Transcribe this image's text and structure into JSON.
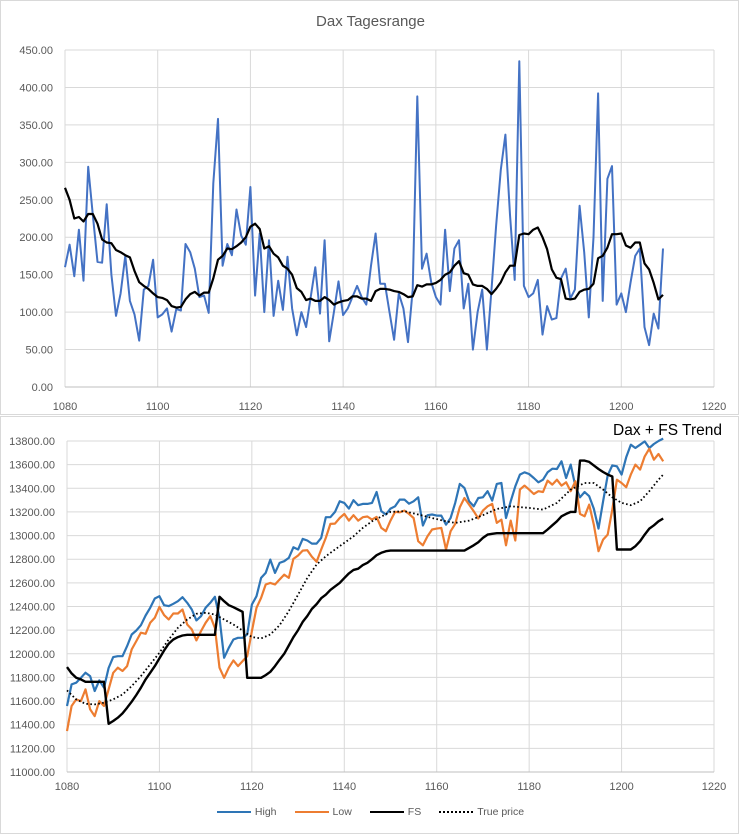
{
  "chart_data": [
    {
      "type": "line",
      "title": "Dax Tagesrange",
      "xlim": [
        1080,
        1220
      ],
      "ylim": [
        0,
        450
      ],
      "grid": true,
      "xticks": [
        "1080",
        "1100",
        "1120",
        "1140",
        "1160",
        "1180",
        "1200",
        "1220"
      ],
      "yticks": [
        "0.00",
        "50.00",
        "100.00",
        "150.00",
        "200.00",
        "250.00",
        "300.00",
        "350.00",
        "400.00",
        "450.00"
      ],
      "x": [
        1080,
        1081,
        1082,
        1083,
        1084,
        1085,
        1086,
        1087,
        1088,
        1089,
        1090,
        1091,
        1092,
        1093,
        1094,
        1095,
        1096,
        1097,
        1098,
        1099,
        1100,
        1101,
        1102,
        1103,
        1104,
        1105,
        1106,
        1107,
        1108,
        1109,
        1110,
        1111,
        1112,
        1113,
        1114,
        1115,
        1116,
        1117,
        1118,
        1119,
        1120,
        1121,
        1122,
        1123,
        1124,
        1125,
        1126,
        1127,
        1128,
        1129,
        1130,
        1131,
        1132,
        1133,
        1134,
        1135,
        1136,
        1137,
        1138,
        1139,
        1140,
        1141,
        1142,
        1143,
        1144,
        1145,
        1146,
        1147,
        1148,
        1149,
        1150,
        1151,
        1152,
        1153,
        1154,
        1155,
        1156,
        1157,
        1158,
        1159,
        1160,
        1161,
        1162,
        1163,
        1164,
        1165,
        1166,
        1167,
        1168,
        1169,
        1170,
        1171,
        1172,
        1173,
        1174,
        1175,
        1176,
        1177,
        1178,
        1179,
        1180,
        1181,
        1182,
        1183,
        1184,
        1185,
        1186,
        1187,
        1188,
        1189,
        1190,
        1191,
        1192,
        1193,
        1194,
        1195,
        1196,
        1197,
        1198,
        1199,
        1200,
        1201,
        1202,
        1203,
        1204,
        1205,
        1206,
        1207,
        1208,
        1209
      ],
      "series": [
        {
          "color": "#4472C4",
          "style": "solid",
          "width": 2,
          "values": [
            160,
            190,
            148,
            210,
            142,
            294,
            230,
            167,
            166,
            244,
            150,
            95,
            125,
            175,
            115,
            97,
            62,
            130,
            135,
            170,
            93,
            97,
            105,
            74,
            104,
            102,
            191,
            180,
            158,
            120,
            122,
            99,
            272,
            358,
            162,
            191,
            176,
            237,
            202,
            190,
            267,
            122,
            205,
            100,
            196,
            95,
            142,
            103,
            174,
            105,
            69,
            100,
            80,
            120,
            160,
            98,
            196,
            61,
            100,
            141,
            96,
            105,
            120,
            135,
            120,
            110,
            162,
            205,
            138,
            138,
            100,
            63,
            125,
            105,
            60,
            130,
            388,
            158,
            178,
            140,
            120,
            110,
            210,
            128,
            185,
            196,
            105,
            138,
            50,
            100,
            130,
            50,
            130,
            215,
            290,
            337,
            230,
            143,
            435,
            135,
            120,
            125,
            143,
            70,
            108,
            90,
            92,
            145,
            158,
            118,
            130,
            242,
            180,
            93,
            200,
            392,
            115,
            278,
            295,
            110,
            125,
            100,
            140,
            175,
            185,
            80,
            56,
            98,
            78,
            185
          ]
        },
        {
          "color": "#000000",
          "style": "solid",
          "width": 2.2,
          "values": [
            266,
            250,
            225,
            227,
            221,
            231,
            231,
            218,
            197,
            193,
            192,
            183,
            180,
            176,
            173,
            155,
            140,
            135,
            131,
            125,
            120,
            119,
            116,
            108,
            106,
            107,
            117,
            124,
            127,
            122,
            126,
            126,
            145,
            170,
            175,
            185,
            184,
            188,
            193,
            200,
            214,
            218,
            211,
            185,
            188,
            178,
            173,
            162,
            158,
            150,
            132,
            127,
            116,
            118,
            115,
            115,
            120,
            116,
            110,
            113,
            115,
            116,
            121,
            121,
            118,
            118,
            115,
            128,
            131,
            131,
            130,
            128,
            127,
            124,
            120,
            121,
            136,
            134,
            137,
            137,
            139,
            143,
            150,
            153,
            162,
            168,
            152,
            150,
            137,
            135,
            135,
            131,
            124,
            131,
            140,
            153,
            162,
            162,
            203,
            205,
            204,
            210,
            213,
            200,
            184,
            157,
            146,
            144,
            118,
            117,
            118,
            127,
            130,
            131,
            138,
            172,
            175,
            186,
            204,
            204,
            205,
            189,
            186,
            193,
            193,
            165,
            157,
            139,
            117,
            123
          ]
        }
      ]
    },
    {
      "type": "line",
      "title": "Dax + FS Trend",
      "xlim": [
        1080,
        1220
      ],
      "ylim": [
        11000,
        13800
      ],
      "grid": true,
      "legend": "bottom",
      "xticks": [
        "1080",
        "1100",
        "1120",
        "1140",
        "1160",
        "1180",
        "1200",
        "1220"
      ],
      "yticks": [
        "11000.00",
        "11200.00",
        "11400.00",
        "11600.00",
        "11800.00",
        "12000.00",
        "12200.00",
        "12400.00",
        "12600.00",
        "12800.00",
        "13000.00",
        "13200.00",
        "13400.00",
        "13600.00",
        "13800.00"
      ],
      "x": [
        1080,
        1081,
        1082,
        1083,
        1084,
        1085,
        1086,
        1087,
        1088,
        1089,
        1090,
        1091,
        1092,
        1093,
        1094,
        1095,
        1096,
        1097,
        1098,
        1099,
        1100,
        1101,
        1102,
        1103,
        1104,
        1105,
        1106,
        1107,
        1108,
        1109,
        1110,
        1111,
        1112,
        1113,
        1114,
        1115,
        1116,
        1117,
        1118,
        1119,
        1120,
        1121,
        1122,
        1123,
        1124,
        1125,
        1126,
        1127,
        1128,
        1129,
        1130,
        1131,
        1132,
        1133,
        1134,
        1135,
        1136,
        1137,
        1138,
        1139,
        1140,
        1141,
        1142,
        1143,
        1144,
        1145,
        1146,
        1147,
        1148,
        1149,
        1150,
        1151,
        1152,
        1153,
        1154,
        1155,
        1156,
        1157,
        1158,
        1159,
        1160,
        1161,
        1162,
        1163,
        1164,
        1165,
        1166,
        1167,
        1168,
        1169,
        1170,
        1171,
        1172,
        1173,
        1174,
        1175,
        1176,
        1177,
        1178,
        1179,
        1180,
        1181,
        1182,
        1183,
        1184,
        1185,
        1186,
        1187,
        1188,
        1189,
        1190,
        1191,
        1192,
        1193,
        1194,
        1195,
        1196,
        1197,
        1198,
        1199,
        1200,
        1201,
        1202,
        1203,
        1204,
        1205,
        1206,
        1207,
        1208,
        1209
      ],
      "series": [
        {
          "name": "High",
          "color": "#2E75B6",
          "style": "solid",
          "width": 2.2,
          "values": [
            11558,
            11741,
            11755,
            11797,
            11840,
            11811,
            11685,
            11775,
            11713,
            11880,
            11972,
            11980,
            11980,
            12065,
            12163,
            12197,
            12242,
            12324,
            12389,
            12468,
            12487,
            12411,
            12403,
            12423,
            12445,
            12479,
            12431,
            12375,
            12282,
            12318,
            12389,
            12431,
            12482,
            12304,
            11966,
            12051,
            12121,
            12135,
            12135,
            12163,
            12417,
            12487,
            12642,
            12684,
            12797,
            12684,
            12769,
            12783,
            12811,
            12901,
            12882,
            12972,
            12958,
            12932,
            12932,
            12980,
            13155,
            13155,
            13200,
            13290,
            13276,
            13228,
            13299,
            13257,
            13268,
            13268,
            13276,
            13369,
            13206,
            13178,
            13228,
            13248,
            13304,
            13304,
            13270,
            13290,
            13324,
            13085,
            13172,
            13178,
            13169,
            13169,
            13093,
            13149,
            13276,
            13437,
            13403,
            13290,
            13248,
            13318,
            13324,
            13375,
            13296,
            13437,
            13445,
            13149,
            13290,
            13417,
            13516,
            13535,
            13521,
            13487,
            13451,
            13473,
            13535,
            13566,
            13563,
            13628,
            13487,
            13600,
            13417,
            13324,
            13369,
            13333,
            13228,
            13059,
            13290,
            13510,
            13594,
            13586,
            13516,
            13662,
            13769,
            13741,
            13769,
            13797,
            13741,
            13775,
            13800,
            13820
          ]
        },
        {
          "name": "Low",
          "color": "#ED7D31",
          "style": "solid",
          "width": 2.2,
          "values": [
            11346,
            11558,
            11614,
            11600,
            11699,
            11530,
            11473,
            11600,
            11558,
            11699,
            11839,
            11882,
            11854,
            11896,
            12037,
            12107,
            12178,
            12169,
            12262,
            12304,
            12397,
            12327,
            12290,
            12341,
            12341,
            12375,
            12248,
            12206,
            12113,
            12192,
            12262,
            12318,
            12220,
            11882,
            11797,
            11882,
            11944,
            11896,
            11938,
            11980,
            12192,
            12389,
            12473,
            12586,
            12600,
            12586,
            12628,
            12670,
            12642,
            12803,
            12831,
            12873,
            12876,
            12820,
            12778,
            12882,
            12980,
            13099,
            13101,
            13149,
            13183,
            13127,
            13172,
            13127,
            13155,
            13161,
            13135,
            13158,
            13065,
            13037,
            13127,
            13200,
            13197,
            13211,
            13183,
            13149,
            12952,
            12918,
            12994,
            13051,
            13059,
            13065,
            12882,
            13037,
            13099,
            13240,
            13318,
            13262,
            13206,
            13144,
            13211,
            13248,
            13268,
            13107,
            13135,
            12918,
            13127,
            12958,
            13389,
            13423,
            13389,
            13352,
            13375,
            13369,
            13465,
            13431,
            13473,
            13423,
            13451,
            13375,
            13459,
            13183,
            13163,
            13262,
            13093,
            12868,
            12966,
            13008,
            13220,
            13473,
            13445,
            13409,
            13516,
            13600,
            13558,
            13670,
            13735,
            13642,
            13690,
            13628
          ]
        },
        {
          "name": "FS",
          "color": "#000000",
          "style": "solid",
          "width": 2.4,
          "values": [
            11887,
            11834,
            11797,
            11783,
            11763,
            11763,
            11763,
            11763,
            11763,
            11408,
            11431,
            11459,
            11496,
            11544,
            11595,
            11651,
            11713,
            11783,
            11839,
            11896,
            11961,
            12028,
            12085,
            12121,
            12141,
            12155,
            12161,
            12161,
            12161,
            12161,
            12161,
            12161,
            12161,
            12482,
            12445,
            12411,
            12394,
            12375,
            12355,
            11797,
            11797,
            11797,
            11797,
            11820,
            11848,
            11896,
            11950,
            12000,
            12070,
            12140,
            12200,
            12270,
            12320,
            12380,
            12420,
            12470,
            12500,
            12540,
            12570,
            12600,
            12640,
            12680,
            12710,
            12720,
            12750,
            12770,
            12800,
            12834,
            12854,
            12868,
            12873,
            12873,
            12873,
            12873,
            12873,
            12873,
            12873,
            12873,
            12873,
            12873,
            12873,
            12873,
            12873,
            12873,
            12873,
            12873,
            12873,
            12896,
            12918,
            12944,
            12980,
            13008,
            13015,
            13020,
            13020,
            13020,
            13020,
            13020,
            13020,
            13020,
            13020,
            13020,
            13020,
            13020,
            13051,
            13087,
            13121,
            13163,
            13183,
            13200,
            13200,
            13634,
            13634,
            13623,
            13594,
            13563,
            13538,
            13516,
            13500,
            12882,
            12882,
            12882,
            12882,
            12910,
            12952,
            13008,
            13059,
            13087,
            13121,
            13144
          ]
        },
        {
          "name": "True price",
          "color": "#000000",
          "style": "dotted",
          "width": 1.8,
          "x": [
            1080,
            1082,
            1084,
            1086,
            1088,
            1090,
            1092,
            1094,
            1096,
            1098,
            1100,
            1102,
            1104,
            1106,
            1108,
            1110,
            1112,
            1114,
            1116,
            1118,
            1120,
            1122,
            1124,
            1126,
            1128,
            1130,
            1132,
            1134,
            1136,
            1138,
            1140,
            1142,
            1144,
            1146,
            1150,
            1153,
            1156,
            1159,
            1162,
            1164,
            1167,
            1170,
            1173,
            1176,
            1180,
            1183,
            1186,
            1189,
            1192,
            1194,
            1196,
            1198,
            1200,
            1202,
            1204,
            1206,
            1208,
            1209
          ],
          "values": [
            11690,
            11614,
            11577,
            11572,
            11586,
            11614,
            11656,
            11727,
            11811,
            11910,
            12008,
            12121,
            12220,
            12290,
            12338,
            12347,
            12332,
            12290,
            12248,
            12197,
            12141,
            12130,
            12163,
            12242,
            12361,
            12501,
            12642,
            12755,
            12825,
            12882,
            12938,
            12994,
            13065,
            13121,
            13200,
            13206,
            13178,
            13149,
            13121,
            13107,
            13127,
            13172,
            13225,
            13248,
            13234,
            13220,
            13276,
            13389,
            13445,
            13445,
            13389,
            13324,
            13276,
            13257,
            13290,
            13375,
            13473,
            13516
          ]
        }
      ]
    }
  ]
}
